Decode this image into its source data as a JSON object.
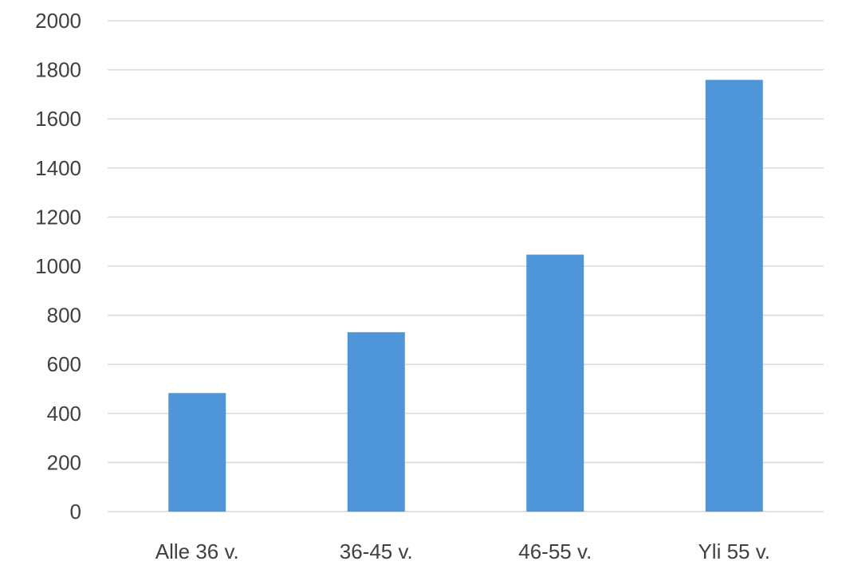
{
  "chart_data": {
    "type": "bar",
    "title": "",
    "xlabel": "",
    "ylabel": "",
    "categories": [
      "Alle 36 v.",
      "36-45 v.",
      "46-55 v.",
      "Yli 55 v."
    ],
    "values": [
      483,
      731,
      1047,
      1759
    ],
    "ylim": [
      0,
      2000
    ],
    "yticks": [
      "0",
      "200",
      "400",
      "600",
      "800",
      "1000",
      "1200",
      "1400",
      "1600",
      "1800",
      "2000"
    ],
    "grid": true,
    "legend": "none",
    "colors": {
      "bar": "#4F95D9",
      "grid": "#D9D9D9",
      "text": "#404040"
    }
  }
}
